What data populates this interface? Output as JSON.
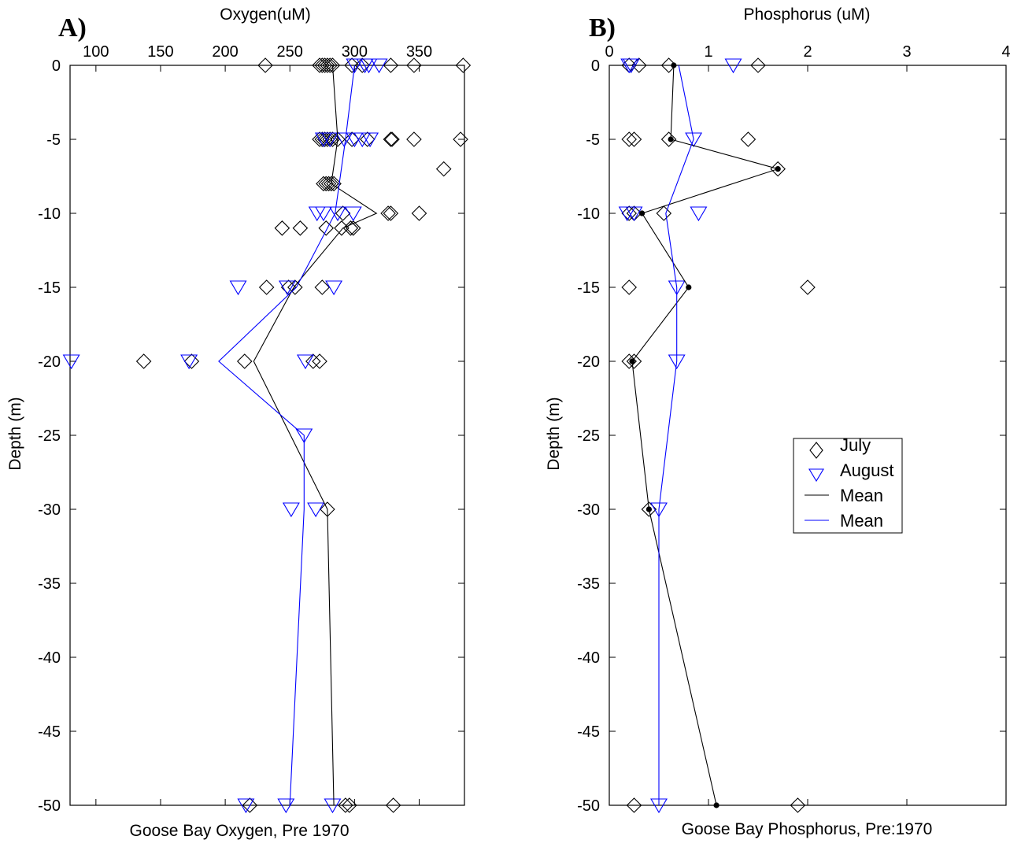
{
  "chart_data": [
    {
      "type": "scatter",
      "panel_label": "A)",
      "xlabel": "Oxygen(uM)",
      "ylabel": "Depth (m)",
      "caption": "Goose Bay Oxygen, Pre 1970",
      "xlim": [
        80,
        385
      ],
      "ylim": [
        -50,
        0
      ],
      "x_tick_values": [
        100,
        150,
        200,
        250,
        300,
        350
      ],
      "x_tick_labels": [
        "100",
        "150",
        "200",
        "250",
        "300",
        "350"
      ],
      "y_tick_values": [
        0,
        -5,
        -10,
        -15,
        -20,
        -25,
        -30,
        -35,
        -40,
        -45,
        -50
      ],
      "y_tick_labels": [
        "0",
        "-5",
        "-10",
        "-15",
        "-20",
        "-25",
        "-30",
        "-35",
        "-40",
        "-45",
        "-50"
      ],
      "axis_position": "x-axis-top",
      "grid": false,
      "series": [
        {
          "name": "July",
          "marker": "diamond",
          "color": "#000000",
          "points": [
            [
              231,
              0
            ],
            [
              273,
              0
            ],
            [
              275,
              0
            ],
            [
              277,
              0
            ],
            [
              279,
              0
            ],
            [
              281,
              0
            ],
            [
              283,
              0
            ],
            [
              298,
              0
            ],
            [
              306,
              0
            ],
            [
              328,
              0
            ],
            [
              346,
              0
            ],
            [
              384,
              0
            ],
            [
              273,
              -5
            ],
            [
              275,
              -5
            ],
            [
              277,
              -5
            ],
            [
              279,
              -5
            ],
            [
              281,
              -5
            ],
            [
              283,
              -5
            ],
            [
              287,
              -5
            ],
            [
              298,
              -5
            ],
            [
              310,
              -5
            ],
            [
              328,
              -5
            ],
            [
              329,
              -5
            ],
            [
              346,
              -5
            ],
            [
              382,
              -5
            ],
            [
              369,
              -7
            ],
            [
              276,
              -8
            ],
            [
              278,
              -8
            ],
            [
              280,
              -8
            ],
            [
              282,
              -8
            ],
            [
              284,
              -8
            ],
            [
              291,
              -10
            ],
            [
              326,
              -10
            ],
            [
              328,
              -10
            ],
            [
              350,
              -10
            ],
            [
              244,
              -11
            ],
            [
              258,
              -11
            ],
            [
              278,
              -11
            ],
            [
              290,
              -11
            ],
            [
              297,
              -11
            ],
            [
              299,
              -11
            ],
            [
              232,
              -15
            ],
            [
              249,
              -15
            ],
            [
              254,
              -15
            ],
            [
              275,
              -15
            ],
            [
              137,
              -20
            ],
            [
              174,
              -20
            ],
            [
              215,
              -20
            ],
            [
              268,
              -20
            ],
            [
              273,
              -20
            ],
            [
              279,
              -30
            ],
            [
              219,
              -50
            ],
            [
              293,
              -50
            ],
            [
              296,
              -50
            ],
            [
              330,
              -50
            ]
          ]
        },
        {
          "name": "August",
          "marker": "triangle-down",
          "color": "#0000ff",
          "points": [
            [
              300,
              0
            ],
            [
              308,
              0
            ],
            [
              311,
              0
            ],
            [
              319,
              0
            ],
            [
              276,
              -5
            ],
            [
              281,
              -5
            ],
            [
              292,
              -5
            ],
            [
              300,
              -5
            ],
            [
              306,
              -5
            ],
            [
              312,
              -5
            ],
            [
              271,
              -10
            ],
            [
              276,
              -10
            ],
            [
              287,
              -10
            ],
            [
              299,
              -10
            ],
            [
              210,
              -15
            ],
            [
              248,
              -15
            ],
            [
              284,
              -15
            ],
            [
              81,
              -20
            ],
            [
              172,
              -20
            ],
            [
              262,
              -20
            ],
            [
              261,
              -25
            ],
            [
              251,
              -30
            ],
            [
              270,
              -30
            ],
            [
              216,
              -50
            ],
            [
              247,
              -50
            ],
            [
              283,
              -50
            ]
          ]
        },
        {
          "name": "Mean",
          "marker": "line",
          "color": "#000000",
          "points": [
            [
              283,
              0
            ],
            [
              287,
              -5
            ],
            [
              282,
              -8
            ],
            [
              317,
              -10
            ],
            [
              291,
              -11
            ],
            [
              253,
              -15
            ],
            [
              222,
              -20
            ],
            [
              279,
              -30
            ],
            [
              284,
              -50
            ]
          ]
        },
        {
          "name": "Mean",
          "marker": "line",
          "color": "#0000ff",
          "points": [
            [
              300,
              0
            ],
            [
              293,
              -5
            ],
            [
              285,
              -10
            ],
            [
              255,
              -15
            ],
            [
              195,
              -20
            ],
            [
              261,
              -25
            ],
            [
              261,
              -30
            ],
            [
              250,
              -50
            ]
          ]
        }
      ]
    },
    {
      "type": "scatter",
      "panel_label": "B)",
      "xlabel": "Phosphorus (uM)",
      "ylabel": "Depth (m)",
      "caption": "Goose Bay Phosphorus, Pre:1970",
      "xlim": [
        0,
        4
      ],
      "ylim": [
        -50,
        0
      ],
      "x_tick_values": [
        0,
        1,
        2,
        3,
        4
      ],
      "x_tick_labels": [
        "0",
        "1",
        "2",
        "3",
        "4"
      ],
      "y_tick_values": [
        0,
        -5,
        -10,
        -15,
        -20,
        -25,
        -30,
        -35,
        -40,
        -45,
        -50
      ],
      "y_tick_labels": [
        "0",
        "-5",
        "-10",
        "-15",
        "-20",
        "-25",
        "-30",
        "-35",
        "-40",
        "-45",
        "-50"
      ],
      "axis_position": "x-axis-top",
      "grid": false,
      "legend_placement": "right-middle",
      "legend": [
        "July",
        "August",
        "Mean",
        "Mean"
      ],
      "series": [
        {
          "name": "July",
          "marker": "diamond",
          "color": "#000000",
          "points": [
            [
              0.2,
              0
            ],
            [
              0.3,
              0
            ],
            [
              0.6,
              0
            ],
            [
              1.5,
              0
            ],
            [
              0.2,
              -5
            ],
            [
              0.25,
              -5
            ],
            [
              0.6,
              -5
            ],
            [
              1.4,
              -5
            ],
            [
              1.7,
              -7
            ],
            [
              0.2,
              -10
            ],
            [
              0.25,
              -10
            ],
            [
              0.55,
              -10
            ],
            [
              0.2,
              -15
            ],
            [
              2.0,
              -15
            ],
            [
              0.2,
              -20
            ],
            [
              0.25,
              -20
            ],
            [
              0.4,
              -30
            ],
            [
              0.25,
              -50
            ],
            [
              1.9,
              -50
            ]
          ]
        },
        {
          "name": "August",
          "marker": "triangle-down",
          "color": "#0000ff",
          "points": [
            [
              0.2,
              0
            ],
            [
              0.22,
              0
            ],
            [
              1.25,
              0
            ],
            [
              0.85,
              -5
            ],
            [
              0.18,
              -10
            ],
            [
              0.25,
              -10
            ],
            [
              0.9,
              -10
            ],
            [
              0.68,
              -15
            ],
            [
              0.68,
              -20
            ],
            [
              0.5,
              -30
            ],
            [
              0.5,
              -50
            ]
          ]
        },
        {
          "name": "Mean",
          "marker": "line-dot",
          "color": "#000000",
          "points": [
            [
              0.65,
              0
            ],
            [
              0.62,
              -5
            ],
            [
              1.7,
              -7
            ],
            [
              0.33,
              -10
            ],
            [
              0.8,
              -15
            ],
            [
              0.23,
              -20
            ],
            [
              0.4,
              -30
            ],
            [
              1.08,
              -50
            ]
          ]
        },
        {
          "name": "Mean",
          "marker": "line",
          "color": "#0000ff",
          "points": [
            [
              0.7,
              0
            ],
            [
              0.85,
              -5
            ],
            [
              0.57,
              -10
            ],
            [
              0.68,
              -15
            ],
            [
              0.68,
              -20
            ],
            [
              0.5,
              -30
            ],
            [
              0.5,
              -50
            ]
          ]
        }
      ]
    }
  ]
}
